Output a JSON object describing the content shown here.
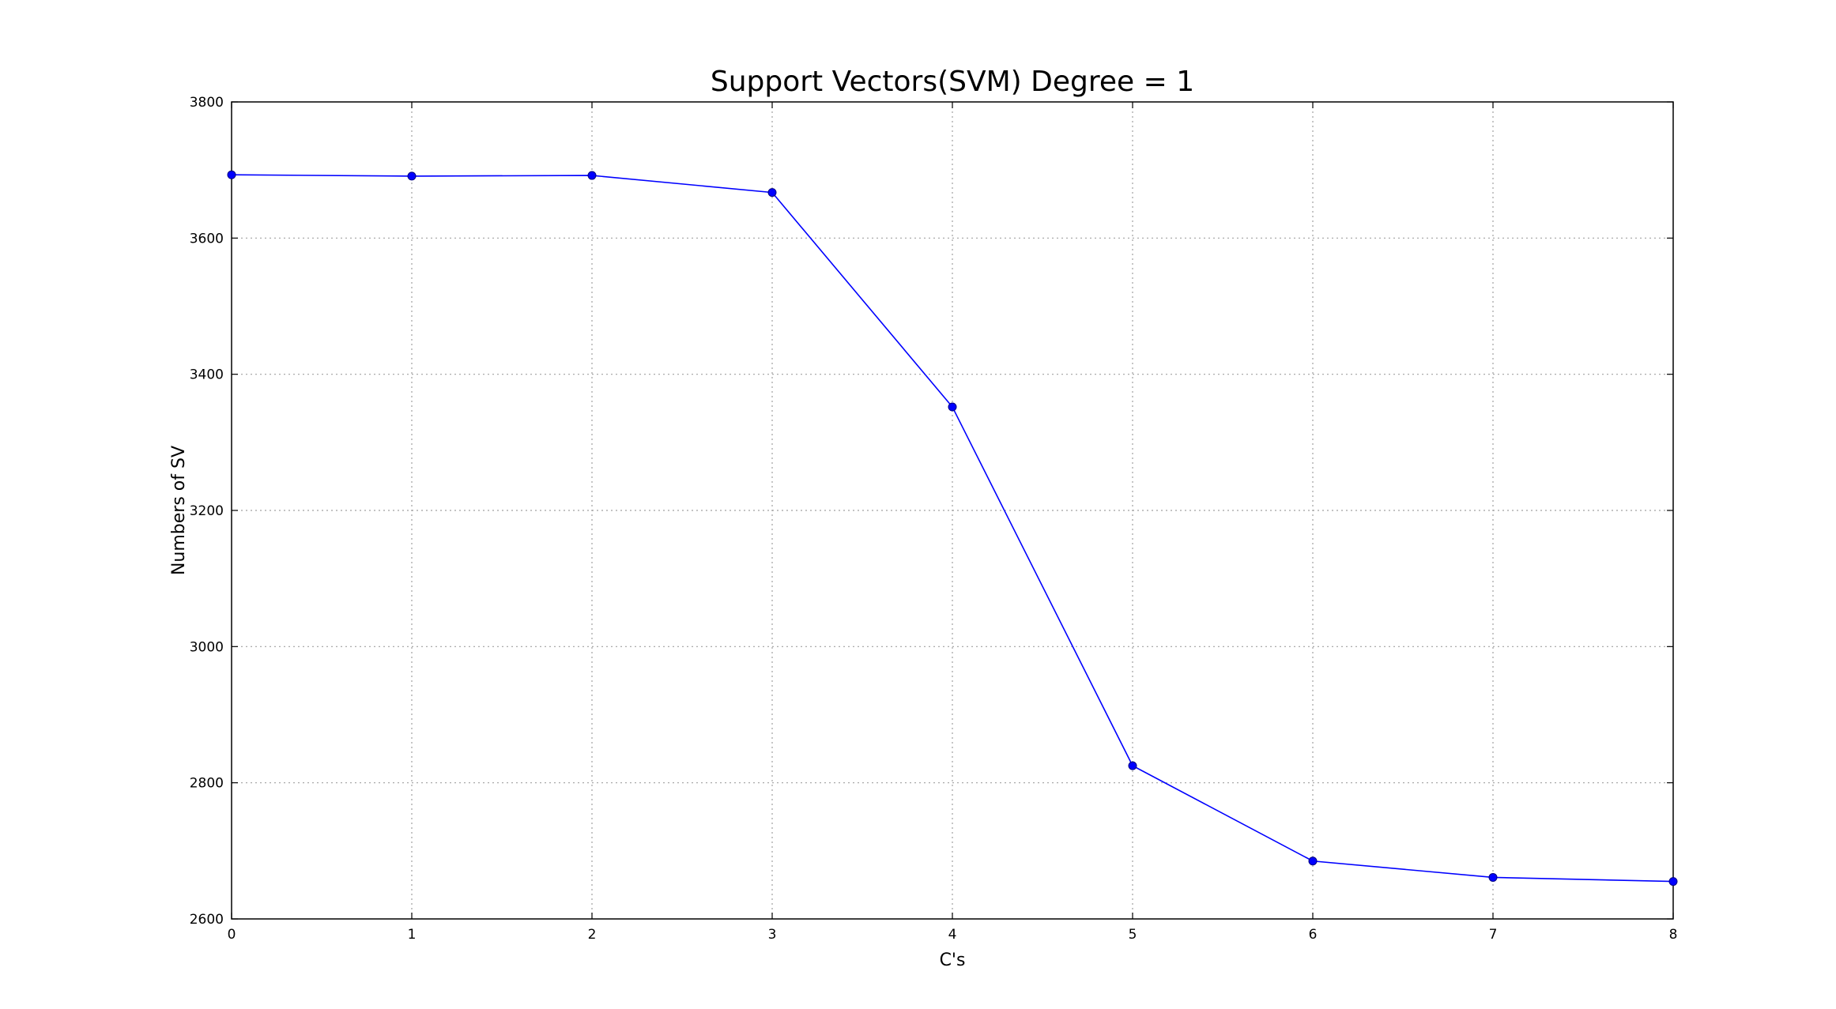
{
  "chart_data": {
    "type": "line",
    "title": "Support Vectors(SVM) Degree = 1",
    "xlabel": "C's",
    "ylabel": "Numbers of SV",
    "xlim": [
      0,
      8
    ],
    "ylim": [
      2600,
      3800
    ],
    "xticks": [
      0,
      1,
      2,
      3,
      4,
      5,
      6,
      7,
      8
    ],
    "yticks": [
      2600,
      2800,
      3000,
      3200,
      3400,
      3600,
      3800
    ],
    "grid": true,
    "series": [
      {
        "x": [
          0,
          1,
          2,
          3,
          4,
          5,
          6,
          7,
          8
        ],
        "values": [
          3693,
          3691,
          3692,
          3667,
          3352,
          2825,
          2685,
          2661,
          2655
        ],
        "color": "#0000ff",
        "marker": "circle"
      }
    ]
  }
}
